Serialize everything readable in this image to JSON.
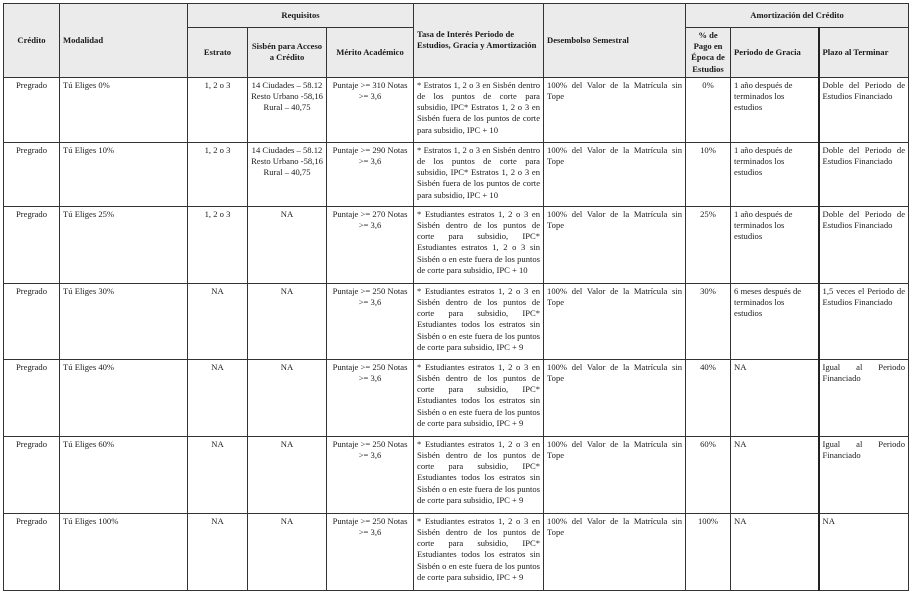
{
  "headers": {
    "credito": "Crédito",
    "modalidad": "Modalidad",
    "requisitos": "Requisitos",
    "estrato": "Estrato",
    "sisben": "Sisbén para Acceso a Crédito",
    "merito": "Mérito Académico",
    "tasa": "Tasa de Interés Periodo de Estudios, Gracia y Amortización",
    "desembolso": "Desembolso Semestral",
    "amortizacion": "Amortización del Crédito",
    "pago": "% de Pago en Época de Estudios",
    "gracia": "Periodo de Gracia",
    "plazo": "Plazo al Terminar"
  },
  "rows": [
    {
      "credito": "Pregrado",
      "modalidad": "Tú Eliges 0%",
      "estrato": "1, 2 o 3",
      "sisben": [
        "14 Ciudades – 58.12",
        "Resto Urbano -58,16",
        "Rural – 40,75"
      ],
      "merito": "Puntaje >= 310 Notas >= 3,6",
      "tasa": "* Estratos 1, 2 o 3 en Sisbén dentro de los puntos de corte para subsidio, IPC* Estratos 1, 2 o 3 en Sisbén fuera de los puntos de corte para subsidio, IPC + 10",
      "desembolso": "100% del Valor de la Matrícula sin Tope",
      "pago": "0%",
      "gracia": "1 año después de terminados los estudios",
      "plazo": "Doble del Periodo de Estudios Financiado"
    },
    {
      "credito": "Pregrado",
      "modalidad": "Tú Eliges 10%",
      "estrato": "1, 2 o 3",
      "sisben": [
        "14 Ciudades – 58.12",
        "Resto Urbano -58,16",
        "Rural – 40,75"
      ],
      "merito": "Puntaje >= 290 Notas >= 3,6",
      "tasa": "* Estratos 1, 2 o 3 en Sisbén dentro de los puntos de corte para subsidio, IPC* Estratos 1, 2 o 3 en Sisbén fuera de los puntos de corte para subsidio, IPC + 10",
      "desembolso": "100% del Valor de la Matrícula sin Tope",
      "pago": "10%",
      "gracia": "1 año después de terminados los estudios",
      "plazo": "Doble del Periodo de Estudios Financiado"
    },
    {
      "credito": "Pregrado",
      "modalidad": "Tú Eliges 25%",
      "estrato": "1, 2 o 3",
      "sisben": [
        "NA"
      ],
      "merito": "Puntaje >= 270 Notas >= 3,6",
      "tasa": "* Estudiantes estratos 1, 2 o 3 en Sisbén dentro de los puntos de corte para subsidio, IPC* Estudiantes estratos 1, 2 o 3 sin Sisbén o en este fuera de los puntos de corte para subsidio, IPC + 10",
      "desembolso": "100% del Valor de la Matrícula sin Tope",
      "pago": "25%",
      "gracia": "1 año después de terminados los estudios",
      "plazo": "Doble del Periodo de Estudios Financiado"
    },
    {
      "credito": "Pregrado",
      "modalidad": "Tú Eliges 30%",
      "estrato": "NA",
      "sisben": [
        "NA"
      ],
      "merito": "Puntaje >= 250 Notas >= 3,6",
      "tasa": "* Estudiantes estratos 1, 2 o 3 en Sisbén dentro de los puntos de corte para subsidio, IPC* Estudiantes todos los estratos sin Sisbén o en este fuera de los puntos de corte para subsidio, IPC + 9",
      "desembolso": "100% del Valor de la Matrícula sin Tope",
      "pago": "30%",
      "gracia": "6 meses después de terminados los estudios",
      "plazo": "1,5 veces el Periodo de Estudios Financiado"
    },
    {
      "credito": "Pregrado",
      "modalidad": "Tú Eliges 40%",
      "estrato": "NA",
      "sisben": [
        "NA"
      ],
      "merito": "Puntaje >= 250 Notas >= 3,6",
      "tasa": "* Estudiantes estratos 1, 2 o 3 en Sisbén dentro de los puntos de corte para subsidio, IPC* Estudiantes todos los estratos sin Sisbén o en este fuera de los puntos de corte para subsidio, IPC + 9",
      "desembolso": "100% del Valor de la Matrícula sin Tope",
      "pago": "40%",
      "gracia": "NA",
      "plazo": "Igual al Periodo Financiado"
    },
    {
      "credito": "Pregrado",
      "modalidad": "Tú Eliges 60%",
      "estrato": "NA",
      "sisben": [
        "NA"
      ],
      "merito": "Puntaje >= 250 Notas >= 3,6",
      "tasa": "* Estudiantes estratos 1, 2 o 3 en Sisbén dentro de los puntos de corte para subsidio, IPC* Estudiantes todos los estratos sin Sisbén o en este fuera de los puntos de corte para subsidio, IPC + 9",
      "desembolso": "100% del Valor de la Matrícula sin Tope",
      "pago": "60%",
      "gracia": "NA",
      "plazo": "Igual al Periodo Financiado"
    },
    {
      "credito": "Pregrado",
      "modalidad": "Tú Eliges 100%",
      "estrato": "NA",
      "sisben": [
        "NA"
      ],
      "merito": "Puntaje >= 250 Notas >= 3,6",
      "tasa": "* Estudiantes estratos 1, 2 o 3 en Sisbén dentro de los puntos de corte para subsidio, IPC* Estudiantes todos los estratos sin Sisbén o en este fuera de los puntos de corte para subsidio, IPC + 9",
      "desembolso": "100% del Valor de la Matrícula sin Tope",
      "pago": "100%",
      "gracia": "NA",
      "plazo": "NA"
    }
  ]
}
